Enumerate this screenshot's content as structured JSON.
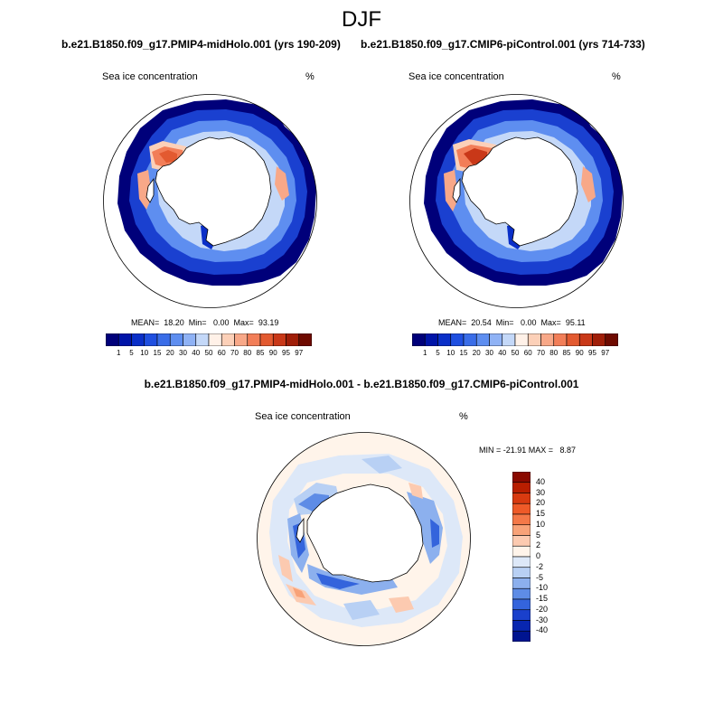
{
  "title": "DJF",
  "panels": [
    {
      "case": "b.e21.B1850.f09_g17.PMIP4-midHolo.001 (yrs 190-209)",
      "variable": "Sea ice concentration",
      "units": "%",
      "stats": "MEAN=  18.20  Min=   0.00  Max=  93.19"
    },
    {
      "case": "b.e21.B1850.f09_g17.CMIP6-piControl.001 (yrs 714-733)",
      "variable": "Sea ice concentration",
      "units": "%",
      "stats": "MEAN=  20.54  Min=   0.00  Max=  95.11"
    }
  ],
  "colorbar": {
    "labels": [
      "1",
      "5",
      "10",
      "15",
      "20",
      "30",
      "40",
      "50",
      "60",
      "70",
      "80",
      "85",
      "90",
      "95",
      "97"
    ],
    "colors": [
      "#00007a",
      "#0014a8",
      "#0a2fc8",
      "#1f4fe0",
      "#3a6de8",
      "#5e8ef0",
      "#8fb2f5",
      "#c4d8f8",
      "#fff1e8",
      "#fcd0b8",
      "#f8a888",
      "#f27e58",
      "#e35a30",
      "#c93818",
      "#a01e08",
      "#6e0a00"
    ]
  },
  "diff": {
    "title": "b.e21.B1850.f09_g17.PMIP4-midHolo.001 - b.e21.B1850.f09_g17.CMIP6-piControl.001",
    "variable": "Sea ice concentration",
    "units": "%",
    "minmax": "MIN = -21.91 MAX =   8.87",
    "colorbar_labels": [
      "40",
      "30",
      "20",
      "15",
      "10",
      "5",
      "2",
      "0",
      "-2",
      "-5",
      "-10",
      "-15",
      "-20",
      "-30",
      "-40"
    ],
    "colorbar_colors": [
      "#8a0a00",
      "#b81e00",
      "#d83a10",
      "#ee5a28",
      "#f47848",
      "#f8a278",
      "#fccab0",
      "#fff4ea",
      "#dde8f8",
      "#b8d0f4",
      "#8cb0ee",
      "#5e8ce6",
      "#3464dc",
      "#1a40cc",
      "#0826b0",
      "#001490"
    ]
  }
}
